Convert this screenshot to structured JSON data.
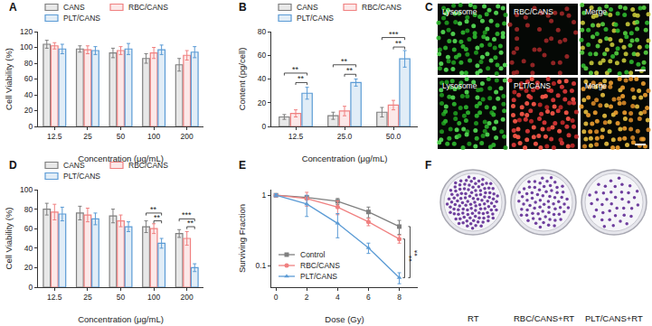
{
  "chart_data": [
    {
      "type": "bar",
      "title": "A",
      "x_label": "Concentration (μg/mL)",
      "y_label": "Cell Viability (%)",
      "categories": [
        "12.5",
        "25",
        "50",
        "100",
        "200"
      ],
      "series": [
        {
          "name": "CANS",
          "color": "#7f7f7f",
          "values": [
            104,
            98,
            93,
            86,
            78
          ],
          "errors": [
            5,
            4,
            6,
            6,
            8
          ]
        },
        {
          "name": "RBC/CANS",
          "color": "#f08080",
          "values": [
            102,
            97,
            96,
            93,
            90
          ],
          "errors": [
            4,
            5,
            5,
            7,
            6
          ]
        },
        {
          "name": "PLT/CANS",
          "color": "#5b9bd5",
          "values": [
            98,
            96,
            98,
            97,
            94
          ],
          "errors": [
            6,
            5,
            7,
            6,
            7
          ]
        }
      ],
      "ylim": [
        0,
        120
      ],
      "yticks": [
        0,
        20,
        40,
        60,
        80,
        100,
        120
      ],
      "legend": "top",
      "grid": false
    },
    {
      "type": "bar",
      "title": "B",
      "x_label": "Concentration (μg/mL)",
      "y_label": "Content (pg/cell)",
      "categories": [
        "12.5",
        "25.0",
        "50.0"
      ],
      "series": [
        {
          "name": "CANS",
          "color": "#7f7f7f",
          "values": [
            8,
            9,
            12
          ],
          "errors": [
            2,
            3,
            4
          ]
        },
        {
          "name": "RBC/CANS",
          "color": "#f08080",
          "values": [
            11,
            13,
            18
          ],
          "errors": [
            3,
            4,
            4
          ]
        },
        {
          "name": "PLT/CANS",
          "color": "#5b9bd5",
          "values": [
            28,
            37,
            57
          ],
          "errors": [
            5,
            3,
            7
          ]
        }
      ],
      "ylim": [
        0,
        80
      ],
      "yticks": [
        0,
        20,
        40,
        60,
        80
      ],
      "legend": "top",
      "grid": false,
      "significance": [
        {
          "category": "12.5",
          "from": "CANS",
          "to": "PLT/CANS",
          "y": 45,
          "text": "**"
        },
        {
          "category": "12.5",
          "from": "RBC/CANS",
          "to": "PLT/CANS",
          "y": 37,
          "text": "**"
        },
        {
          "category": "25.0",
          "from": "CANS",
          "to": "PLT/CANS",
          "y": 52,
          "text": "**"
        },
        {
          "category": "25.0",
          "from": "RBC/CANS",
          "to": "PLT/CANS",
          "y": 44,
          "text": "**"
        },
        {
          "category": "50.0",
          "from": "CANS",
          "to": "PLT/CANS",
          "y": 75,
          "text": "***"
        },
        {
          "category": "50.0",
          "from": "RBC/CANS",
          "to": "PLT/CANS",
          "y": 67,
          "text": "**"
        }
      ]
    },
    {
      "type": "bar",
      "title": "D",
      "x_label": "Concentration (μg/mL)",
      "y_label": "Cell Viability (%)",
      "categories": [
        "12.5",
        "25",
        "50",
        "100",
        "200"
      ],
      "series": [
        {
          "name": "CANS",
          "color": "#7f7f7f",
          "values": [
            80,
            76,
            73,
            62,
            55
          ],
          "errors": [
            6,
            7,
            7,
            6,
            4
          ]
        },
        {
          "name": "RBC/CANS",
          "color": "#f08080",
          "values": [
            77,
            74,
            68,
            60,
            50
          ],
          "errors": [
            8,
            7,
            6,
            5,
            7
          ]
        },
        {
          "name": "PLT/CANS",
          "color": "#5b9bd5",
          "values": [
            75,
            70,
            62,
            45,
            20
          ],
          "errors": [
            7,
            6,
            5,
            5,
            4
          ]
        }
      ],
      "ylim": [
        0,
        100
      ],
      "yticks": [
        0,
        20,
        40,
        60,
        80,
        100
      ],
      "legend": "top",
      "grid": false,
      "significance": [
        {
          "category": "100",
          "from": "CANS",
          "to": "PLT/CANS",
          "y": 76,
          "text": "**"
        },
        {
          "category": "100",
          "from": "RBC/CANS",
          "to": "PLT/CANS",
          "y": 68,
          "text": "**"
        },
        {
          "category": "200",
          "from": "CANS",
          "to": "PLT/CANS",
          "y": 70,
          "text": "***"
        },
        {
          "category": "200",
          "from": "RBC/CANS",
          "to": "PLT/CANS",
          "y": 62,
          "text": "**"
        }
      ]
    },
    {
      "type": "line",
      "title": "E",
      "x_label": "Dose (Gy)",
      "y_label": "Surviving Fraction",
      "x": [
        0,
        2,
        4,
        6,
        8
      ],
      "series": [
        {
          "name": "Control",
          "color": "#7f7f7f",
          "marker": "square",
          "values": [
            1,
            0.93,
            0.82,
            0.58,
            0.36
          ],
          "errors": [
            0.05,
            0.06,
            0.08,
            0.1,
            0.08
          ]
        },
        {
          "name": "RBC/CANS",
          "color": "#f08080",
          "marker": "circle",
          "values": [
            1,
            0.9,
            0.68,
            0.42,
            0.24
          ],
          "errors": [
            0.05,
            0.2,
            0.15,
            0.05,
            0.03
          ]
        },
        {
          "name": "PLT/CANS",
          "color": "#5b9bd5",
          "marker": "triangle-up",
          "values": [
            1,
            0.75,
            0.4,
            0.18,
            0.068
          ],
          "errors": [
            0.05,
            0.25,
            0.15,
            0.03,
            0.012
          ]
        }
      ],
      "xlim": [
        -0.3,
        9.2
      ],
      "xticks": [
        0,
        2,
        4,
        6,
        8
      ],
      "ylim": [
        0.05,
        1.2
      ],
      "yticks": [
        0.1,
        1
      ],
      "log": "y",
      "legend": "lower left",
      "grid": false,
      "significance": [
        {
          "x": 8,
          "from": "PLT/CANS",
          "to": "RBC/CANS",
          "text": "**"
        },
        {
          "x": 8,
          "from": "PLT/CANS",
          "to": "Control",
          "text": "**"
        }
      ]
    }
  ],
  "image_panels": [
    {
      "type": "micrograph",
      "title": "C",
      "labels": [
        "Lysosome",
        "RBC/CANS",
        "Merge",
        "Lysosome",
        "PLT/CANS",
        "Merge"
      ]
    },
    {
      "type": "plate_photo",
      "title": "F",
      "labels": [
        "RT",
        "RBC/CANS+RT",
        "PLT/CANS+RT"
      ]
    }
  ]
}
